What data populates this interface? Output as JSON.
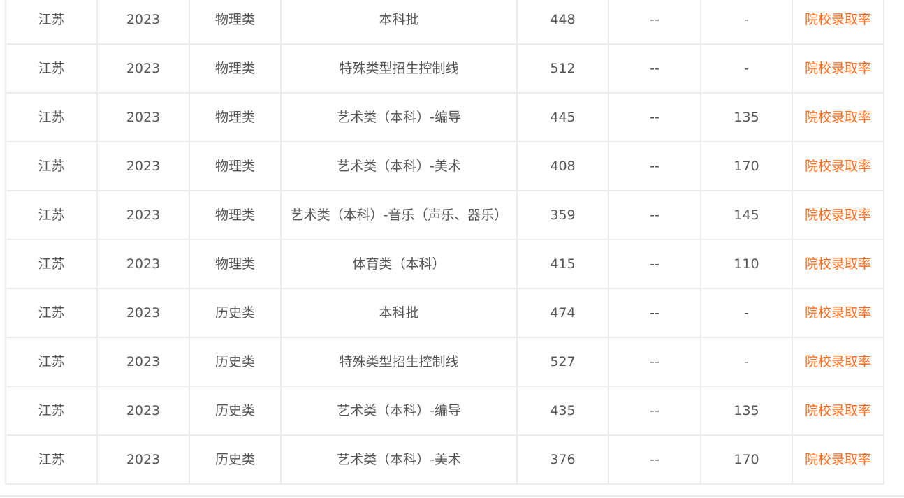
{
  "link_label": "院校录取率",
  "link_color": "#ff6a1a",
  "rows": [
    {
      "province": "江苏",
      "year": "2023",
      "category": "物理类",
      "batch": "本科批",
      "score": "448",
      "col6": "--",
      "col7": "-"
    },
    {
      "province": "江苏",
      "year": "2023",
      "category": "物理类",
      "batch": "特殊类型招生控制线",
      "score": "512",
      "col6": "--",
      "col7": "-"
    },
    {
      "province": "江苏",
      "year": "2023",
      "category": "物理类",
      "batch": "艺术类（本科）-编导",
      "score": "445",
      "col6": "--",
      "col7": "135"
    },
    {
      "province": "江苏",
      "year": "2023",
      "category": "物理类",
      "batch": "艺术类（本科）-美术",
      "score": "408",
      "col6": "--",
      "col7": "170"
    },
    {
      "province": "江苏",
      "year": "2023",
      "category": "物理类",
      "batch": "艺术类（本科）-音乐（声乐、器乐）",
      "score": "359",
      "col6": "--",
      "col7": "145"
    },
    {
      "province": "江苏",
      "year": "2023",
      "category": "物理类",
      "batch": "体育类（本科）",
      "score": "415",
      "col6": "--",
      "col7": "110"
    },
    {
      "province": "江苏",
      "year": "2023",
      "category": "历史类",
      "batch": "本科批",
      "score": "474",
      "col6": "--",
      "col7": "-"
    },
    {
      "province": "江苏",
      "year": "2023",
      "category": "历史类",
      "batch": "特殊类型招生控制线",
      "score": "527",
      "col6": "--",
      "col7": "-"
    },
    {
      "province": "江苏",
      "year": "2023",
      "category": "历史类",
      "batch": "艺术类（本科）-编导",
      "score": "435",
      "col6": "--",
      "col7": "135"
    },
    {
      "province": "江苏",
      "year": "2023",
      "category": "历史类",
      "batch": "艺术类（本科）-美术",
      "score": "376",
      "col6": "--",
      "col7": "170"
    }
  ]
}
